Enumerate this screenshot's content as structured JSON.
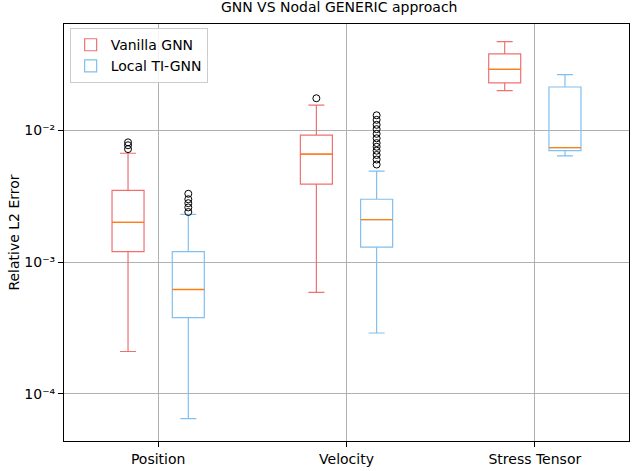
{
  "chart_data": {
    "type": "box",
    "title": "GNN VS Nodal GENERIC approach",
    "ylabel": "Relative L2 Error",
    "categories": [
      "Position",
      "Velocity",
      "Stress Tensor"
    ],
    "series": [
      {
        "name": "Vanilla GNN",
        "color": "#f07070",
        "q1": [
          0.0012,
          0.0039,
          0.0229
        ],
        "median": [
          0.002,
          0.0066,
          0.029
        ],
        "q3": [
          0.0035,
          0.0092,
          0.038
        ],
        "lowerfence": [
          0.00021,
          0.00059,
          0.02
        ],
        "upperfence": [
          0.0067,
          0.0155,
          0.047
        ],
        "outliers": [
          [
            0.0072,
            0.0077,
            0.0081
          ],
          [
            0.0175
          ],
          []
        ]
      },
      {
        "name": "Local TI-GNN",
        "color": "#80bff0",
        "q1": [
          0.00038,
          0.0013,
          0.007
        ],
        "median": [
          0.00062,
          0.0021,
          0.0074
        ],
        "q3": [
          0.0012,
          0.003,
          0.0213
        ],
        "lowerfence": [
          6.5e-05,
          0.00029,
          0.0064
        ],
        "upperfence": [
          0.0023,
          0.0049,
          0.0264
        ],
        "outliers": [
          [
            0.0024,
            0.0026,
            0.0028,
            0.003,
            0.0033
          ],
          [
            0.0055,
            0.006,
            0.0065,
            0.007,
            0.0075,
            0.008,
            0.0087,
            0.0094,
            0.0102,
            0.011,
            0.012,
            0.013
          ],
          []
        ]
      }
    ],
    "ylim": [
      4.4e-05,
      0.064
    ],
    "yticks": [
      {
        "value": 0.0001,
        "label": "10⁻⁴"
      },
      {
        "value": 0.001,
        "label": "10⁻³"
      },
      {
        "value": 0.01,
        "label": "10⁻²"
      }
    ],
    "log": "y",
    "grid": true,
    "legend": "upper left"
  }
}
